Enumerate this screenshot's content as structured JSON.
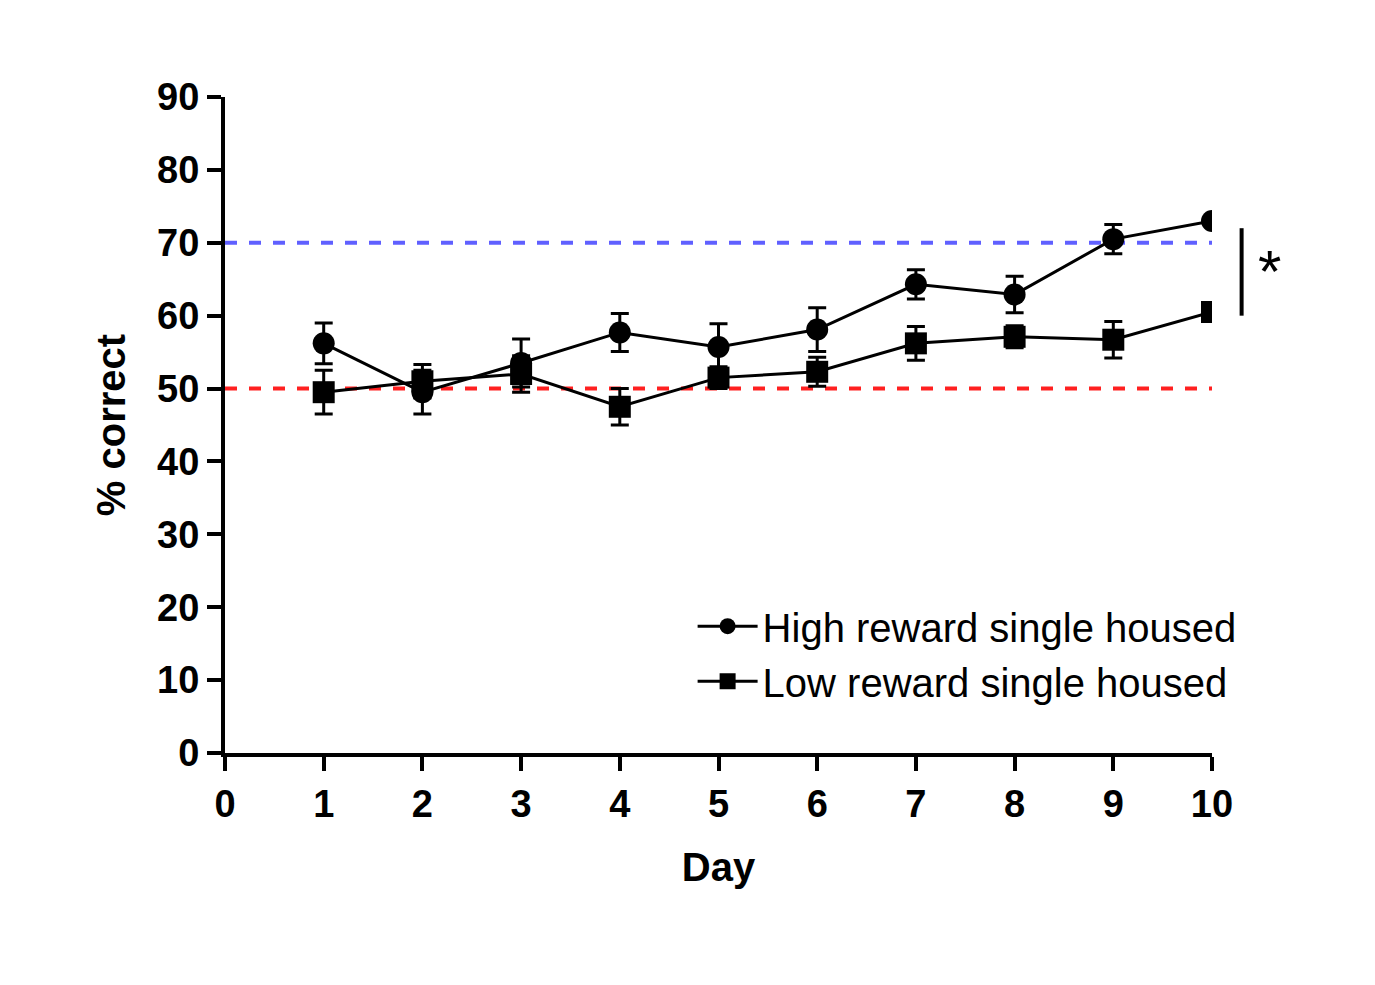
{
  "chart_data": {
    "type": "line",
    "x_label": "Day",
    "y_label": "% correct",
    "x": [
      1,
      2,
      3,
      4,
      5,
      6,
      7,
      8,
      9,
      10
    ],
    "series": [
      {
        "name": "High reward single housed",
        "color": "#000000",
        "marker": "circle",
        "values": [
          56.2,
          49.5,
          53.5,
          57.7,
          55.7,
          58.1,
          64.3,
          62.9,
          70.5,
          73.0
        ],
        "errors": [
          2.8,
          3.0,
          3.3,
          2.6,
          3.2,
          3.0,
          2.0,
          2.5,
          2.0,
          0.5
        ]
      },
      {
        "name": "Low reward single housed",
        "color": "#000000",
        "marker": "square",
        "values": [
          49.5,
          51.0,
          52.0,
          47.5,
          51.5,
          52.3,
          56.2,
          57.1,
          56.7,
          60.5
        ],
        "errors": [
          3.0,
          2.3,
          2.5,
          2.5,
          1.5,
          2.0,
          2.3,
          1.5,
          2.5,
          1.0
        ]
      }
    ],
    "xlim": [
      0,
      10
    ],
    "xticks": [
      0,
      1,
      2,
      3,
      4,
      5,
      6,
      7,
      8,
      9,
      10
    ],
    "ylim": [
      0,
      90
    ],
    "yticks": [
      0,
      10,
      20,
      30,
      40,
      50,
      60,
      70,
      80,
      90
    ],
    "grid": false,
    "legend": "bottom right",
    "reference_lines": [
      {
        "value": 50,
        "color": "#ff2020",
        "line_style": "dash"
      },
      {
        "value": 70,
        "color": "#6060ff",
        "line_style": "dash"
      }
    ],
    "annotations": [
      {
        "text": "*",
        "y_range": [
          60,
          72
        ]
      }
    ]
  }
}
